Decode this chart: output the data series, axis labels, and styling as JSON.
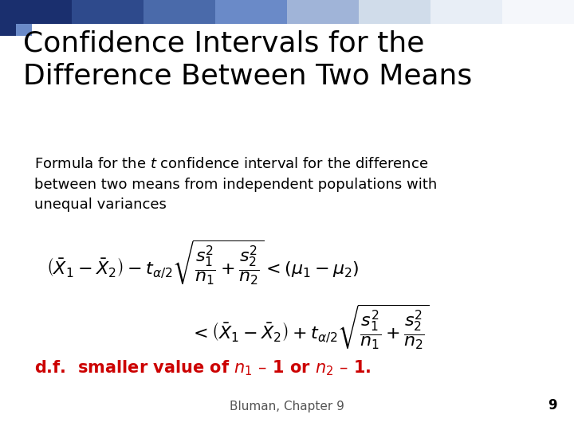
{
  "title_line1": "Confidence Intervals for the",
  "title_line2": "Difference Between Two Means",
  "body_text": "Formula for the $t$ confidence interval for the difference\nbetween two means from independent populations with\nunequal variances",
  "df_label": "d.f.  smaller value of $n_1$ – 1 or $n_2$ – 1.",
  "footer": "Bluman, Chapter 9",
  "page_number": "9",
  "bg_color": "#ffffff",
  "title_color": "#000000",
  "body_color": "#000000",
  "df_color": "#cc0000",
  "footer_color": "#555555",
  "title_fontsize": 26,
  "body_fontsize": 13,
  "formula_fontsize": 16,
  "df_fontsize": 15,
  "footer_fontsize": 11,
  "gradient_colors": [
    "#1a2f6e",
    "#2e4a8c",
    "#4a6aaa",
    "#6a8ac8",
    "#a0b4d8",
    "#d0dcea",
    "#e8eef6",
    "#f5f7fb"
  ],
  "sq_colors": [
    "#1a2f6e",
    "#6a8ac8"
  ]
}
